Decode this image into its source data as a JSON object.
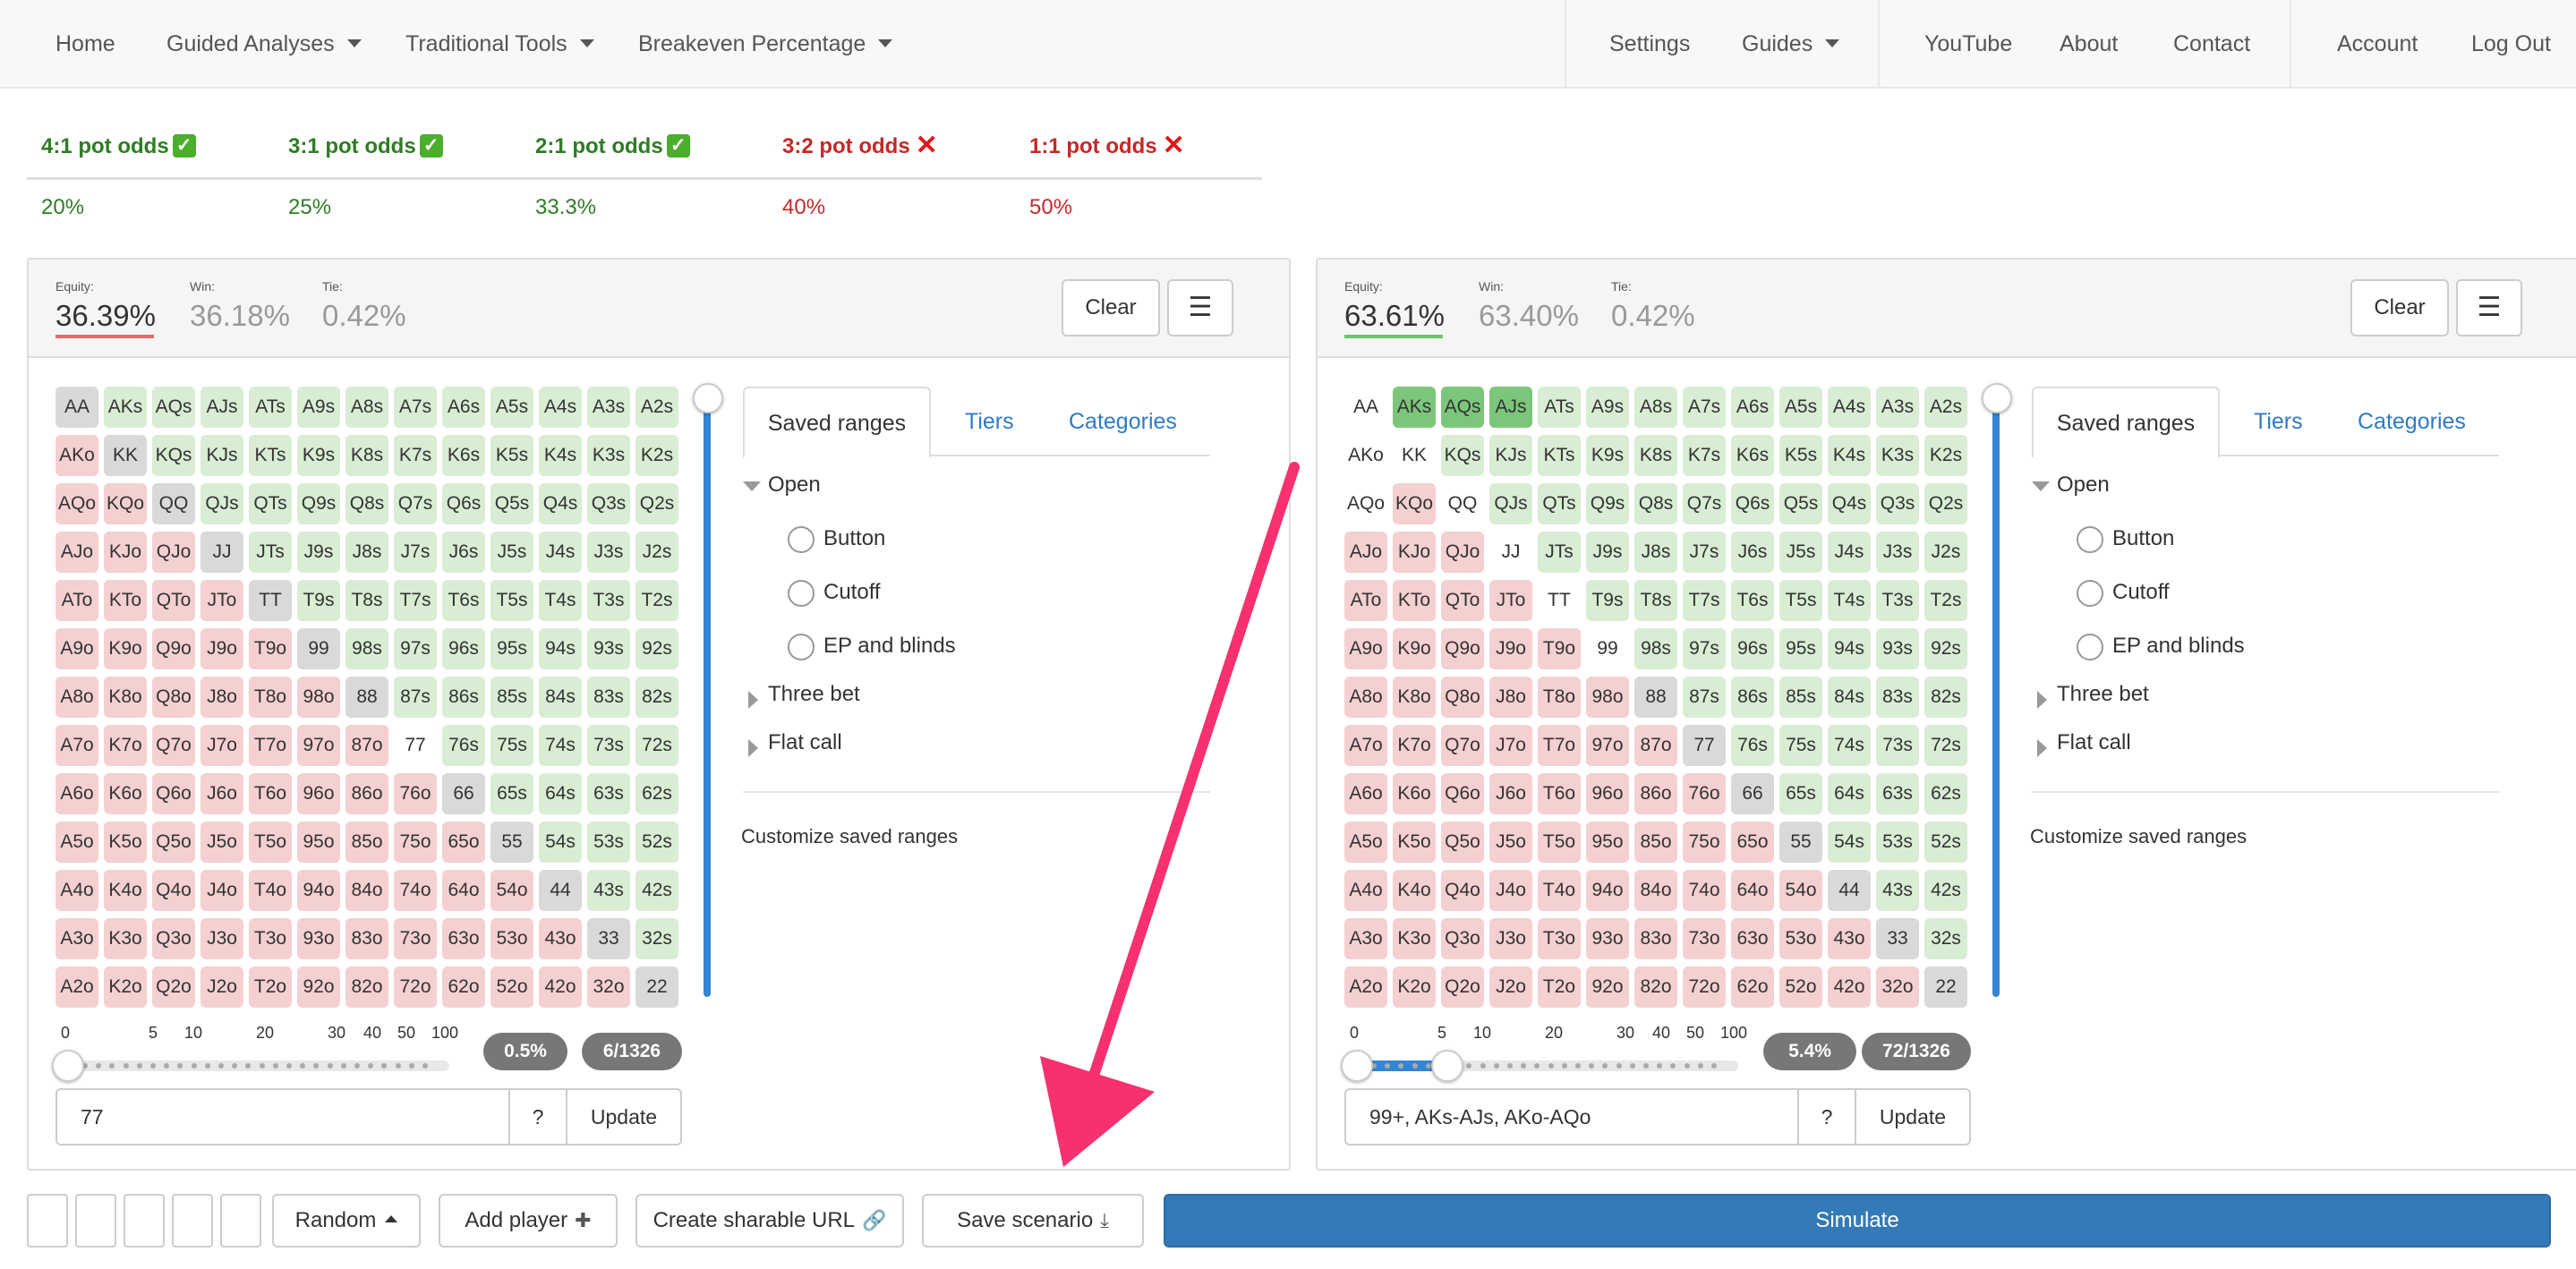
{
  "nav": {
    "left": [
      {
        "label": "Home",
        "dropdown": false
      },
      {
        "label": "Guided Analyses",
        "dropdown": true
      },
      {
        "label": "Traditional Tools",
        "dropdown": true
      },
      {
        "label": "Breakeven Percentage",
        "dropdown": true
      }
    ],
    "right": [
      {
        "label": "Settings",
        "dropdown": false
      },
      {
        "label": "Guides",
        "dropdown": true
      },
      {
        "label": "YouTube",
        "dropdown": false
      },
      {
        "label": "About",
        "dropdown": false
      },
      {
        "label": "Contact",
        "dropdown": false
      },
      {
        "label": "Account",
        "dropdown": false
      },
      {
        "label": "Log Out",
        "dropdown": false
      }
    ]
  },
  "pot_odds": [
    {
      "label": "4:1 pot odds",
      "value": "20%",
      "status": "ok"
    },
    {
      "label": "3:1 pot odds",
      "value": "25%",
      "status": "ok"
    },
    {
      "label": "2:1 pot odds",
      "value": "33.3%",
      "status": "ok"
    },
    {
      "label": "3:2 pot odds",
      "value": "40%",
      "status": "bad"
    },
    {
      "label": "1:1 pot odds",
      "value": "50%",
      "status": "bad"
    }
  ],
  "players": [
    {
      "equity_label": "Equity:",
      "equity": "36.39%",
      "win_label": "Win:",
      "win": "36.18%",
      "tie_label": "Tie:",
      "tie": "0.42%",
      "equity_color": "#e06c6c",
      "clear_label": "Clear",
      "tabs": [
        "Saved ranges",
        "Tiers",
        "Categories"
      ],
      "saved_ranges": {
        "open_label": "Open",
        "open_children": [
          "Button",
          "Cutoff",
          "EP and blinds"
        ],
        "three_bet_label": "Three bet",
        "flat_call_label": "Flat call",
        "customize_label": "Customize saved ranges"
      },
      "ticks": [
        "0",
        "5",
        "10",
        "20",
        "30",
        "40",
        "50",
        "100"
      ],
      "slider": {
        "from_percent": 0,
        "to_percent": 0
      },
      "percent_pill": "0.5%",
      "combos_pill": "6/1326",
      "range_text": "77",
      "help_label": "?",
      "update_label": "Update",
      "selected": [
        "77"
      ]
    },
    {
      "equity_label": "Equity:",
      "equity": "63.61%",
      "win_label": "Win:",
      "win": "63.40%",
      "tie_label": "Tie:",
      "tie": "0.42%",
      "equity_color": "#6cc46c",
      "clear_label": "Clear",
      "tabs": [
        "Saved ranges",
        "Tiers",
        "Categories"
      ],
      "saved_ranges": {
        "open_label": "Open",
        "open_children": [
          "Button",
          "Cutoff",
          "EP and blinds"
        ],
        "three_bet_label": "Three bet",
        "flat_call_label": "Flat call",
        "customize_label": "Customize saved ranges"
      },
      "ticks": [
        "0",
        "5",
        "10",
        "20",
        "30",
        "40",
        "50",
        "100"
      ],
      "slider": {
        "from_percent": 0,
        "to_percent": 5.4
      },
      "percent_pill": "5.4%",
      "combos_pill": "72/1326",
      "range_text": "99+, AKs-AJs, AKo-AQo",
      "help_label": "?",
      "update_label": "Update",
      "selected": [
        "AA",
        "KK",
        "QQ",
        "JJ",
        "TT",
        "99",
        "AKs",
        "AQs",
        "AJs",
        "AKo",
        "AQo"
      ]
    }
  ],
  "grid": [
    [
      "AA",
      "AKs",
      "AQs",
      "AJs",
      "ATs",
      "A9s",
      "A8s",
      "A7s",
      "A6s",
      "A5s",
      "A4s",
      "A3s",
      "A2s"
    ],
    [
      "AKo",
      "KK",
      "KQs",
      "KJs",
      "KTs",
      "K9s",
      "K8s",
      "K7s",
      "K6s",
      "K5s",
      "K4s",
      "K3s",
      "K2s"
    ],
    [
      "AQo",
      "KQo",
      "QQ",
      "QJs",
      "QTs",
      "Q9s",
      "Q8s",
      "Q7s",
      "Q6s",
      "Q5s",
      "Q4s",
      "Q3s",
      "Q2s"
    ],
    [
      "AJo",
      "KJo",
      "QJo",
      "JJ",
      "JTs",
      "J9s",
      "J8s",
      "J7s",
      "J6s",
      "J5s",
      "J4s",
      "J3s",
      "J2s"
    ],
    [
      "ATo",
      "KTo",
      "QTo",
      "JTo",
      "TT",
      "T9s",
      "T8s",
      "T7s",
      "T6s",
      "T5s",
      "T4s",
      "T3s",
      "T2s"
    ],
    [
      "A9o",
      "K9o",
      "Q9o",
      "J9o",
      "T9o",
      "99",
      "98s",
      "97s",
      "96s",
      "95s",
      "94s",
      "93s",
      "92s"
    ],
    [
      "A8o",
      "K8o",
      "Q8o",
      "J8o",
      "T8o",
      "98o",
      "88",
      "87s",
      "86s",
      "85s",
      "84s",
      "83s",
      "82s"
    ],
    [
      "A7o",
      "K7o",
      "Q7o",
      "J7o",
      "T7o",
      "97o",
      "87o",
      "77",
      "76s",
      "75s",
      "74s",
      "73s",
      "72s"
    ],
    [
      "A6o",
      "K6o",
      "Q6o",
      "J6o",
      "T6o",
      "96o",
      "86o",
      "76o",
      "66",
      "65s",
      "64s",
      "63s",
      "62s"
    ],
    [
      "A5o",
      "K5o",
      "Q5o",
      "J5o",
      "T5o",
      "95o",
      "85o",
      "75o",
      "65o",
      "55",
      "54s",
      "53s",
      "52s"
    ],
    [
      "A4o",
      "K4o",
      "Q4o",
      "J4o",
      "T4o",
      "94o",
      "84o",
      "74o",
      "64o",
      "54o",
      "44",
      "43s",
      "42s"
    ],
    [
      "A3o",
      "K3o",
      "Q3o",
      "J3o",
      "T3o",
      "93o",
      "83o",
      "73o",
      "63o",
      "53o",
      "43o",
      "33",
      "32s"
    ],
    [
      "A2o",
      "K2o",
      "Q2o",
      "J2o",
      "T2o",
      "92o",
      "82o",
      "72o",
      "62o",
      "52o",
      "42o",
      "32o",
      "22"
    ]
  ],
  "footer": {
    "random_label": "Random",
    "add_player_label": "Add player",
    "share_label": "Create sharable URL",
    "save_label": "Save scenario",
    "simulate_label": "Simulate"
  },
  "colors": {
    "accent": "#337ab7",
    "link": "#2e7bc4",
    "ok": "#2e7d23",
    "bad": "#c62828",
    "arrow": "#f7306f"
  }
}
